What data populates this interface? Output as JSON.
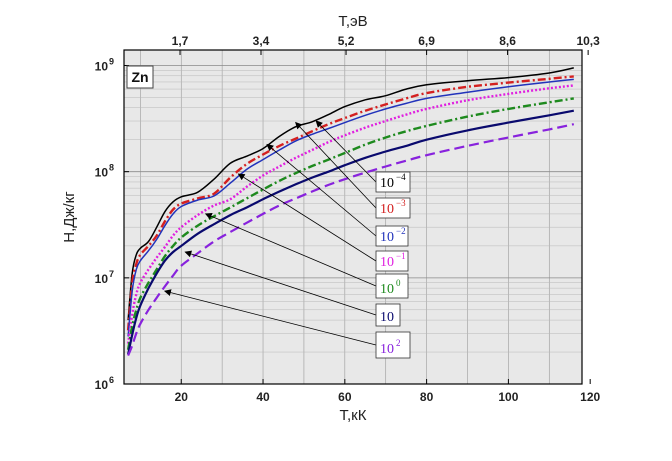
{
  "chart_data": {
    "type": "line",
    "label": "Zn",
    "xlabel": "T,кК",
    "ylabel": "H,Дж/кг",
    "x2label": "T,эВ",
    "xlim": [
      6,
      118
    ],
    "ylim": [
      1000000,
      1400000000
    ],
    "yscale": "log",
    "grid": true,
    "x_ticks": [
      "20",
      "40",
      "60",
      "80",
      "100",
      "120"
    ],
    "x_tick_values": [
      20,
      40,
      60,
      80,
      100,
      120
    ],
    "x2_ticks": [
      "1,7",
      "3,4",
      "5,2",
      "6,9",
      "8,6",
      "10,3"
    ],
    "x2_tick_values": [
      19.7,
      39.5,
      60.3,
      80.0,
      99.8,
      119.5
    ],
    "y_ticks": [
      {
        "base": "10",
        "exp": "6",
        "value": 1000000
      },
      {
        "base": "10",
        "exp": "7",
        "value": 10000000
      },
      {
        "base": "10",
        "exp": "8",
        "value": 100000000
      },
      {
        "base": "10",
        "exp": "9",
        "value": 1000000000
      }
    ],
    "legend": [
      {
        "base": "10",
        "exp": "−4"
      },
      {
        "base": "10",
        "exp": "−3"
      },
      {
        "base": "10",
        "exp": "−2"
      },
      {
        "base": "10",
        "exp": "−1"
      },
      {
        "base": "10",
        "exp": "0"
      },
      {
        "base": "10",
        "exp": ""
      },
      {
        "base": "10",
        "exp": "2"
      }
    ],
    "series": [
      {
        "color": "#000000",
        "dash": "",
        "x": [
          7,
          8,
          9,
          10,
          12,
          14,
          16,
          18,
          20,
          24,
          28,
          32,
          36,
          40,
          44,
          48,
          52,
          56,
          60,
          65,
          70,
          75,
          80,
          90,
          100,
          110,
          116
        ],
        "y": [
          4000000,
          11000000,
          16500000,
          19000000,
          22000000,
          30000000,
          42000000,
          52000000,
          58000000,
          64000000,
          85000000,
          120000000,
          140000000,
          165000000,
          215000000,
          265000000,
          295000000,
          345000000,
          410000000,
          475000000,
          520000000,
          600000000,
          660000000,
          720000000,
          770000000,
          850000000,
          950000000
        ]
      },
      {
        "color": "#d42020",
        "dash": "8,3,2,3",
        "x": [
          7,
          8,
          9,
          10,
          12,
          14,
          16,
          18,
          20,
          24,
          28,
          32,
          36,
          40,
          44,
          48,
          52,
          56,
          60,
          65,
          70,
          75,
          80,
          90,
          100,
          110,
          116
        ],
        "y": [
          3200000,
          9000000,
          13500000,
          16500000,
          20000000,
          25000000,
          34000000,
          44000000,
          50000000,
          56000000,
          62000000,
          88000000,
          118000000,
          145000000,
          175000000,
          205000000,
          240000000,
          280000000,
          320000000,
          375000000,
          430000000,
          490000000,
          550000000,
          630000000,
          690000000,
          750000000,
          790000000
        ]
      },
      {
        "color": "#2233bb",
        "dash": "",
        "x": [
          7,
          8,
          9,
          10,
          12,
          14,
          16,
          18,
          20,
          24,
          28,
          32,
          36,
          40,
          44,
          48,
          52,
          56,
          60,
          65,
          70,
          75,
          80,
          90,
          100,
          110,
          116
        ],
        "y": [
          2800000,
          7500000,
          12000000,
          14500000,
          18000000,
          23000000,
          31000000,
          40000000,
          47000000,
          54000000,
          59000000,
          78000000,
          105000000,
          130000000,
          160000000,
          195000000,
          225000000,
          255000000,
          290000000,
          340000000,
          390000000,
          440000000,
          490000000,
          560000000,
          630000000,
          700000000,
          740000000
        ]
      },
      {
        "color": "#e020e0",
        "dash": "2,2",
        "x": [
          7,
          8,
          9,
          10,
          12,
          14,
          16,
          18,
          20,
          24,
          28,
          32,
          36,
          40,
          44,
          48,
          52,
          56,
          60,
          65,
          70,
          75,
          80,
          90,
          100,
          110,
          116
        ],
        "y": [
          2400000,
          4500000,
          7000000,
          9000000,
          12000000,
          15500000,
          19500000,
          25000000,
          30000000,
          39000000,
          48000000,
          55000000,
          72000000,
          92000000,
          112000000,
          135000000,
          160000000,
          190000000,
          220000000,
          260000000,
          300000000,
          345000000,
          390000000,
          470000000,
          540000000,
          610000000,
          650000000
        ]
      },
      {
        "color": "#1e8a1e",
        "dash": "8,3,2,3",
        "x": [
          7,
          8,
          9,
          10,
          12,
          14,
          16,
          18,
          20,
          24,
          28,
          32,
          36,
          40,
          44,
          48,
          52,
          56,
          60,
          65,
          70,
          75,
          80,
          90,
          100,
          110,
          116
        ],
        "y": [
          2100000,
          3500000,
          5000000,
          6500000,
          9000000,
          12000000,
          16000000,
          20000000,
          24000000,
          31000000,
          38000000,
          46000000,
          56000000,
          68000000,
          82000000,
          97000000,
          113000000,
          130000000,
          150000000,
          180000000,
          210000000,
          240000000,
          270000000,
          330000000,
          390000000,
          450000000,
          490000000
        ]
      },
      {
        "color": "#0a0a6e",
        "dash": "",
        "x": [
          7,
          8,
          9,
          10,
          12,
          14,
          16,
          18,
          20,
          24,
          28,
          32,
          36,
          40,
          44,
          48,
          52,
          56,
          60,
          65,
          70,
          75,
          80,
          90,
          100,
          110,
          116
        ],
        "y": [
          1900000,
          2900000,
          4200000,
          5500000,
          8000000,
          11000000,
          14500000,
          17500000,
          20000000,
          26000000,
          32000000,
          39000000,
          46000000,
          55000000,
          65000000,
          76000000,
          88000000,
          100000000,
          115000000,
          135000000,
          155000000,
          175000000,
          200000000,
          245000000,
          290000000,
          340000000,
          375000000
        ]
      },
      {
        "color": "#8822dd",
        "dash": "10,5",
        "x": [
          7,
          8,
          9,
          10,
          12,
          14,
          16,
          18,
          20,
          24,
          28,
          32,
          36,
          40,
          44,
          48,
          52,
          56,
          60,
          65,
          70,
          75,
          80,
          90,
          100,
          110,
          116
        ],
        "y": [
          1850000,
          2300000,
          3000000,
          3700000,
          5000000,
          6500000,
          8300000,
          10500000,
          13000000,
          17000000,
          22000000,
          27000000,
          33000000,
          40000000,
          48000000,
          56000000,
          65000000,
          75000000,
          85000000,
          98000000,
          112000000,
          127000000,
          143000000,
          175000000,
          210000000,
          250000000,
          280000000
        ]
      }
    ],
    "callouts": [
      {
        "x": 53,
        "y": 300000000
      },
      {
        "x": 48,
        "y": 290000000
      },
      {
        "x": 41,
        "y": 180000000
      },
      {
        "x": 34,
        "y": 95000000
      },
      {
        "x": 26,
        "y": 40000000
      },
      {
        "x": 21,
        "y": 17500000
      },
      {
        "x": 16,
        "y": 7500000
      }
    ]
  }
}
